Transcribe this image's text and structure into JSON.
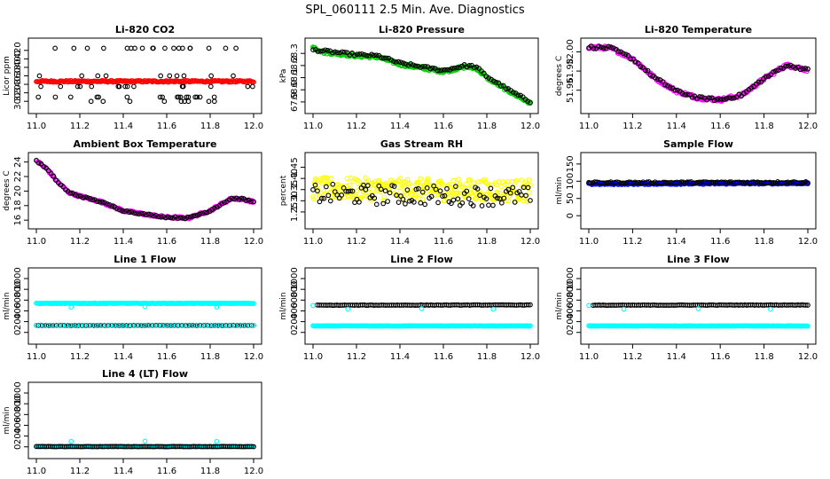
{
  "figure": {
    "title": "SPL_060111  2.5 Min. Ave. Diagnostics"
  },
  "chart_data": [
    {
      "id": "co2",
      "type": "scatter",
      "title": "Li-820 CO2",
      "ylabel": "Licor ppm",
      "xlim": [
        11.0,
        12.0
      ],
      "ylim": [
        290,
        430
      ],
      "xticks": [
        "11.0",
        "11.2",
        "11.4",
        "11.6",
        "11.8",
        "12.0"
      ],
      "yticks": [
        "300",
        "320",
        "340",
        "360",
        "380",
        "400",
        "420"
      ],
      "series": [
        {
          "name": "CO2 (black)",
          "color": "#000000",
          "kind": "scatter_levels",
          "levels": [
            300,
            310,
            335,
            360,
            425
          ],
          "n": 70
        },
        {
          "name": "CO2 (red)",
          "color": "#ff0000",
          "kind": "band",
          "points": [
            [
              11.0,
              347
            ],
            [
              12.0,
              347
            ]
          ],
          "jitter": 2,
          "n": 220
        }
      ]
    },
    {
      "id": "pressure",
      "type": "scatter",
      "title": "Li-820 Pressure",
      "ylabel": "kPa",
      "xlim": [
        11.0,
        12.0
      ],
      "ylim": [
        67.87,
        68.36
      ],
      "xticks": [
        "11.0",
        "11.2",
        "11.4",
        "11.6",
        "11.8",
        "12.0"
      ],
      "yticks": [
        "67.9",
        "68.0",
        "68.1",
        "68.2",
        "68.3"
      ],
      "series": [
        {
          "name": "Pressure (green)",
          "color": "#00cc00",
          "kind": "band",
          "points": [
            [
              11.0,
              68.35
            ],
            [
              11.05,
              68.31
            ],
            [
              11.1,
              68.3
            ],
            [
              11.15,
              68.29
            ],
            [
              11.2,
              68.28
            ],
            [
              11.3,
              68.27
            ],
            [
              11.4,
              68.21
            ],
            [
              11.5,
              68.18
            ],
            [
              11.6,
              68.15
            ],
            [
              11.7,
              68.19
            ],
            [
              11.75,
              68.18
            ],
            [
              11.8,
              68.1
            ],
            [
              11.9,
              67.99
            ],
            [
              12.0,
              67.89
            ]
          ],
          "jitter": 0.012,
          "n": 220
        },
        {
          "name": "Pressure (black)",
          "color": "#000000",
          "kind": "band",
          "points": [
            [
              11.0,
              68.33
            ],
            [
              11.05,
              68.32
            ],
            [
              11.1,
              68.31
            ],
            [
              11.15,
              68.3
            ],
            [
              11.2,
              68.29
            ],
            [
              11.3,
              68.28
            ],
            [
              11.4,
              68.22
            ],
            [
              11.5,
              68.19
            ],
            [
              11.6,
              68.16
            ],
            [
              11.7,
              68.2
            ],
            [
              11.75,
              68.19
            ],
            [
              11.8,
              68.11
            ],
            [
              11.9,
              68.0
            ],
            [
              12.0,
              67.9
            ]
          ],
          "jitter": 0.01,
          "n": 90
        }
      ]
    },
    {
      "id": "licor_temp",
      "type": "scatter",
      "title": "Li-820 Temperature",
      "ylabel": "degrees C",
      "xlim": [
        11.0,
        12.0
      ],
      "ylim": [
        51.944,
        52.006
      ],
      "xticks": [
        "11.0",
        "11.2",
        "11.4",
        "11.6",
        "11.8",
        "12.0"
      ],
      "yticks": [
        "51.96",
        "51.98",
        "52.00"
      ],
      "series": [
        {
          "name": "Temp (magenta)",
          "color": "#ff00ff",
          "kind": "band",
          "points": [
            [
              11.0,
              52.005
            ],
            [
              11.1,
              52.004
            ],
            [
              11.2,
              51.993
            ],
            [
              11.3,
              51.973
            ],
            [
              11.4,
              51.959
            ],
            [
              11.5,
              51.952
            ],
            [
              11.6,
              51.95
            ],
            [
              11.7,
              51.955
            ],
            [
              11.8,
              51.972
            ],
            [
              11.9,
              51.986
            ],
            [
              11.95,
              51.984
            ],
            [
              12.0,
              51.981
            ]
          ],
          "jitter": 0.0018,
          "n": 220
        },
        {
          "name": "Temp (black)",
          "color": "#000000",
          "kind": "band",
          "points": [
            [
              11.0,
              52.005
            ],
            [
              11.1,
              52.004
            ],
            [
              11.2,
              51.993
            ],
            [
              11.3,
              51.973
            ],
            [
              11.4,
              51.959
            ],
            [
              11.5,
              51.952
            ],
            [
              11.6,
              51.95
            ],
            [
              11.7,
              51.955
            ],
            [
              11.8,
              51.972
            ],
            [
              11.9,
              51.986
            ],
            [
              11.95,
              51.984
            ],
            [
              12.0,
              51.981
            ]
          ],
          "jitter": 0.0015,
          "n": 90
        }
      ]
    },
    {
      "id": "box_temp",
      "type": "scatter",
      "title": "Ambient Box Temperature",
      "ylabel": "degrees C",
      "xlim": [
        11.0,
        12.0
      ],
      "ylim": [
        15.9,
        24.2
      ],
      "xticks": [
        "11.0",
        "11.2",
        "11.4",
        "11.6",
        "11.8",
        "12.0"
      ],
      "yticks": [
        "16",
        "18",
        "20",
        "22",
        "24"
      ],
      "series": [
        {
          "name": "Box temp (magenta)",
          "color": "#ff00ff",
          "kind": "band",
          "points": [
            [
              11.0,
              24.2
            ],
            [
              11.05,
              23.0
            ],
            [
              11.1,
              21.2
            ],
            [
              11.15,
              19.8
            ],
            [
              11.2,
              19.3
            ],
            [
              11.3,
              18.5
            ],
            [
              11.4,
              17.3
            ],
            [
              11.5,
              16.8
            ],
            [
              11.6,
              16.4
            ],
            [
              11.7,
              16.3
            ],
            [
              11.8,
              17.3
            ],
            [
              11.85,
              18.2
            ],
            [
              11.9,
              19.0
            ],
            [
              11.95,
              18.9
            ],
            [
              12.0,
              18.5
            ]
          ],
          "jitter": 0.15,
          "n": 220
        },
        {
          "name": "Box temp (black)",
          "color": "#000000",
          "kind": "band",
          "points": [
            [
              11.0,
              24.2
            ],
            [
              11.05,
              23.0
            ],
            [
              11.1,
              21.2
            ],
            [
              11.15,
              19.8
            ],
            [
              11.2,
              19.3
            ],
            [
              11.3,
              18.5
            ],
            [
              11.4,
              17.3
            ],
            [
              11.5,
              16.8
            ],
            [
              11.6,
              16.4
            ],
            [
              11.7,
              16.3
            ],
            [
              11.8,
              17.3
            ],
            [
              11.85,
              18.2
            ],
            [
              11.9,
              19.0
            ],
            [
              11.95,
              18.9
            ],
            [
              12.0,
              18.5
            ]
          ],
          "jitter": 0.1,
          "n": 90
        }
      ]
    },
    {
      "id": "rh",
      "type": "scatter",
      "title": "Gas Stream RH",
      "ylabel": "percent",
      "xlim": [
        11.0,
        12.0
      ],
      "ylim": [
        1.21,
        1.48
      ],
      "xticks": [
        "11.0",
        "11.2",
        "11.4",
        "11.6",
        "11.8",
        "12.0"
      ],
      "yticks": [
        "1.25",
        "1.30",
        "1.35",
        "1.40",
        "1.45"
      ],
      "series": [
        {
          "name": "RH (yellow)",
          "color": "#ffff00",
          "kind": "band",
          "points": [
            [
              11.0,
              1.355
            ],
            [
              12.0,
              1.345
            ]
          ],
          "jitter": 0.05,
          "n": 300
        },
        {
          "name": "RH (black)",
          "color": "#000000",
          "kind": "band",
          "points": [
            [
              11.0,
              1.33
            ],
            [
              12.0,
              1.32
            ]
          ],
          "jitter": 0.045,
          "n": 100
        }
      ]
    },
    {
      "id": "sample_flow",
      "type": "scatter",
      "title": "Sample Flow",
      "ylabel": "ml/min",
      "xlim": [
        11.0,
        12.0
      ],
      "ylim": [
        -15,
        160
      ],
      "xticks": [
        "11.0",
        "11.2",
        "11.4",
        "11.6",
        "11.8",
        "12.0"
      ],
      "yticks": [
        "0",
        "50",
        "100",
        "150"
      ],
      "series": [
        {
          "name": "Flow (blue)",
          "color": "#0000ff",
          "kind": "band",
          "points": [
            [
              11.0,
              92
            ],
            [
              12.0,
              94
            ]
          ],
          "jitter": 2,
          "n": 220
        },
        {
          "name": "Flow (black)",
          "color": "#000000",
          "kind": "band",
          "points": [
            [
              11.0,
              96
            ],
            [
              12.0,
              97
            ]
          ],
          "jitter": 2,
          "n": 110
        }
      ]
    },
    {
      "id": "line1",
      "type": "scatter",
      "title": "Line 1 Flow",
      "ylabel": "ml/min",
      "xlim": [
        11.0,
        12.0
      ],
      "ylim": [
        -70,
        1050
      ],
      "xticks": [
        "11.0",
        "11.2",
        "11.4",
        "11.6",
        "11.8",
        "12.0"
      ],
      "yticks": [
        "0",
        "200",
        "400",
        "600",
        "800",
        "1000"
      ],
      "series": [
        {
          "name": "Line 1 (cyan)",
          "color": "#00ffff",
          "kind": "band",
          "points": [
            [
              11.0,
              540
            ],
            [
              12.0,
              540
            ]
          ],
          "jitter": 5,
          "n": 220
        },
        {
          "name": "Line 1 (black)",
          "color": "#000000",
          "kind": "band",
          "points": [
            [
              11.0,
              130
            ],
            [
              12.0,
              130
            ]
          ],
          "jitter": 3,
          "n": 110
        },
        {
          "name": "Line 1 (cyan low)",
          "color": "#00ffff",
          "kind": "band",
          "points": [
            [
              11.0,
              130
            ],
            [
              12.0,
              130
            ]
          ],
          "jitter": 3,
          "n": 60
        },
        {
          "name": "Line 1 dips",
          "color": "#00ffff",
          "kind": "points",
          "points": [
            [
              11.16,
              470
            ],
            [
              11.5,
              480
            ],
            [
              11.83,
              470
            ]
          ]
        }
      ]
    },
    {
      "id": "line2",
      "type": "scatter",
      "title": "Line 2 Flow",
      "ylabel": "ml/min",
      "xlim": [
        11.0,
        12.0
      ],
      "ylim": [
        -70,
        1050
      ],
      "xticks": [
        "11.0",
        "11.2",
        "11.4",
        "11.6",
        "11.8",
        "12.0"
      ],
      "yticks": [
        "0",
        "200",
        "400",
        "600",
        "800",
        "1000"
      ],
      "series": [
        {
          "name": "Line 2 (cyan)",
          "color": "#00ffff",
          "kind": "band",
          "points": [
            [
              11.0,
              120
            ],
            [
              12.0,
              120
            ]
          ],
          "jitter": 4,
          "n": 220
        },
        {
          "name": "Line 2 (black)",
          "color": "#000000",
          "kind": "band",
          "points": [
            [
              11.02,
              505
            ],
            [
              12.0,
              510
            ]
          ],
          "jitter": 4,
          "n": 110
        },
        {
          "name": "Line 2 dips",
          "color": "#00ffff",
          "kind": "points",
          "points": [
            [
              11.0,
              500
            ],
            [
              11.16,
              430
            ],
            [
              11.5,
              440
            ],
            [
              11.83,
              430
            ]
          ]
        }
      ]
    },
    {
      "id": "line3",
      "type": "scatter",
      "title": "Line 3 Flow",
      "ylabel": "ml/min",
      "xlim": [
        11.0,
        12.0
      ],
      "ylim": [
        -70,
        1050
      ],
      "xticks": [
        "11.0",
        "11.2",
        "11.4",
        "11.6",
        "11.8",
        "12.0"
      ],
      "yticks": [
        "0",
        "200",
        "400",
        "600",
        "800",
        "1000"
      ],
      "series": [
        {
          "name": "Line 3 (cyan)",
          "color": "#00ffff",
          "kind": "band",
          "points": [
            [
              11.0,
              120
            ],
            [
              12.0,
              120
            ]
          ],
          "jitter": 4,
          "n": 220
        },
        {
          "name": "Line 3 (black)",
          "color": "#000000",
          "kind": "band",
          "points": [
            [
              11.02,
              505
            ],
            [
              12.0,
              510
            ]
          ],
          "jitter": 4,
          "n": 110
        },
        {
          "name": "Line 3 dips",
          "color": "#00ffff",
          "kind": "points",
          "points": [
            [
              11.0,
              500
            ],
            [
              11.16,
              430
            ],
            [
              11.5,
              440
            ],
            [
              11.83,
              430
            ]
          ]
        }
      ]
    },
    {
      "id": "line4",
      "type": "scatter",
      "title": "Line 4 (LT) Flow",
      "ylabel": "ml/min",
      "xlim": [
        11.0,
        12.0
      ],
      "ylim": [
        -70,
        1050
      ],
      "xticks": [
        "11.0",
        "11.2",
        "11.4",
        "11.6",
        "11.8",
        "12.0"
      ],
      "yticks": [
        "0",
        "200",
        "400",
        "600",
        "800",
        "1000"
      ],
      "series": [
        {
          "name": "Line 4 (cyan)",
          "color": "#00ffff",
          "kind": "band",
          "points": [
            [
              11.0,
              5
            ],
            [
              12.0,
              5
            ]
          ],
          "jitter": 3,
          "n": 220
        },
        {
          "name": "Line 4 (black)",
          "color": "#000000",
          "kind": "band",
          "points": [
            [
              11.0,
              5
            ],
            [
              12.0,
              5
            ]
          ],
          "jitter": 3,
          "n": 110
        },
        {
          "name": "Line 4 spikes",
          "color": "#00ffff",
          "kind": "points",
          "points": [
            [
              11.16,
              100
            ],
            [
              11.5,
              105
            ],
            [
              11.83,
              100
            ]
          ]
        }
      ]
    }
  ]
}
